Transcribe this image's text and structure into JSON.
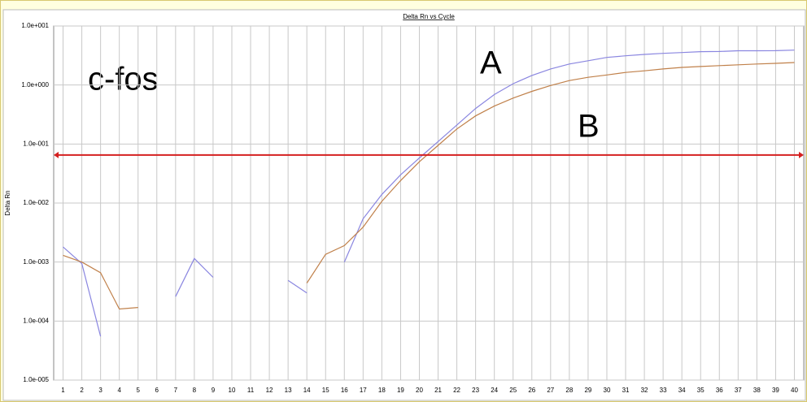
{
  "chart_data": {
    "type": "line",
    "title": "Delta Rn vs Cycle",
    "ylabel": "Delta Rn",
    "annotation": "c-fos",
    "log_y": true,
    "grid": true,
    "x": [
      1,
      2,
      3,
      4,
      5,
      6,
      7,
      8,
      9,
      10,
      11,
      12,
      13,
      14,
      15,
      16,
      17,
      18,
      19,
      20,
      21,
      22,
      23,
      24,
      25,
      26,
      27,
      28,
      29,
      30,
      31,
      32,
      33,
      34,
      35,
      36,
      37,
      38,
      39,
      40
    ],
    "xlim": [
      0.5,
      40.5
    ],
    "xticks": [
      1,
      2,
      3,
      4,
      5,
      6,
      7,
      8,
      9,
      10,
      11,
      12,
      13,
      14,
      15,
      16,
      17,
      18,
      19,
      20,
      21,
      22,
      23,
      24,
      25,
      26,
      27,
      28,
      29,
      30,
      31,
      32,
      33,
      34,
      35,
      36,
      37,
      38,
      39,
      40
    ],
    "ylim": [
      1e-05,
      10
    ],
    "yticks": [
      {
        "value": 1e-05,
        "label": "1.0e-005"
      },
      {
        "value": 0.0001,
        "label": "1.0e-004"
      },
      {
        "value": 0.001,
        "label": "1.0e-003"
      },
      {
        "value": 0.01,
        "label": "1.0e-002"
      },
      {
        "value": 0.1,
        "label": "1.0e-001"
      },
      {
        "value": 1,
        "label": "1.0e+000"
      },
      {
        "value": 10,
        "label": "1.0e+001"
      }
    ],
    "threshold": 0.065,
    "threshold_color": "#d42020",
    "series": [
      {
        "name": "A",
        "color": "#8a86e0",
        "values": [
          0.0018,
          0.00094,
          5.5e-05,
          null,
          null,
          null,
          0.00026,
          0.00115,
          0.00055,
          null,
          null,
          null,
          0.00049,
          0.0003,
          null,
          0.001,
          0.0054,
          0.014,
          0.03,
          0.058,
          0.11,
          0.21,
          0.4,
          0.69,
          1.05,
          1.45,
          1.87,
          2.27,
          2.58,
          2.93,
          3.13,
          3.3,
          3.44,
          3.55,
          3.67,
          3.7,
          3.8,
          3.8,
          3.82,
          3.9
        ]
      },
      {
        "name": "B",
        "color": "#c0804a",
        "values": [
          0.0013,
          0.001,
          0.00066,
          0.00016,
          0.00017,
          null,
          null,
          null,
          null,
          null,
          null,
          null,
          null,
          0.00044,
          0.00135,
          0.0019,
          0.0039,
          0.0107,
          0.024,
          0.05,
          0.095,
          0.18,
          0.3,
          0.44,
          0.6,
          0.78,
          0.98,
          1.19,
          1.35,
          1.48,
          1.63,
          1.74,
          1.87,
          1.99,
          2.06,
          2.13,
          2.2,
          2.27,
          2.33,
          2.4
        ]
      }
    ]
  }
}
